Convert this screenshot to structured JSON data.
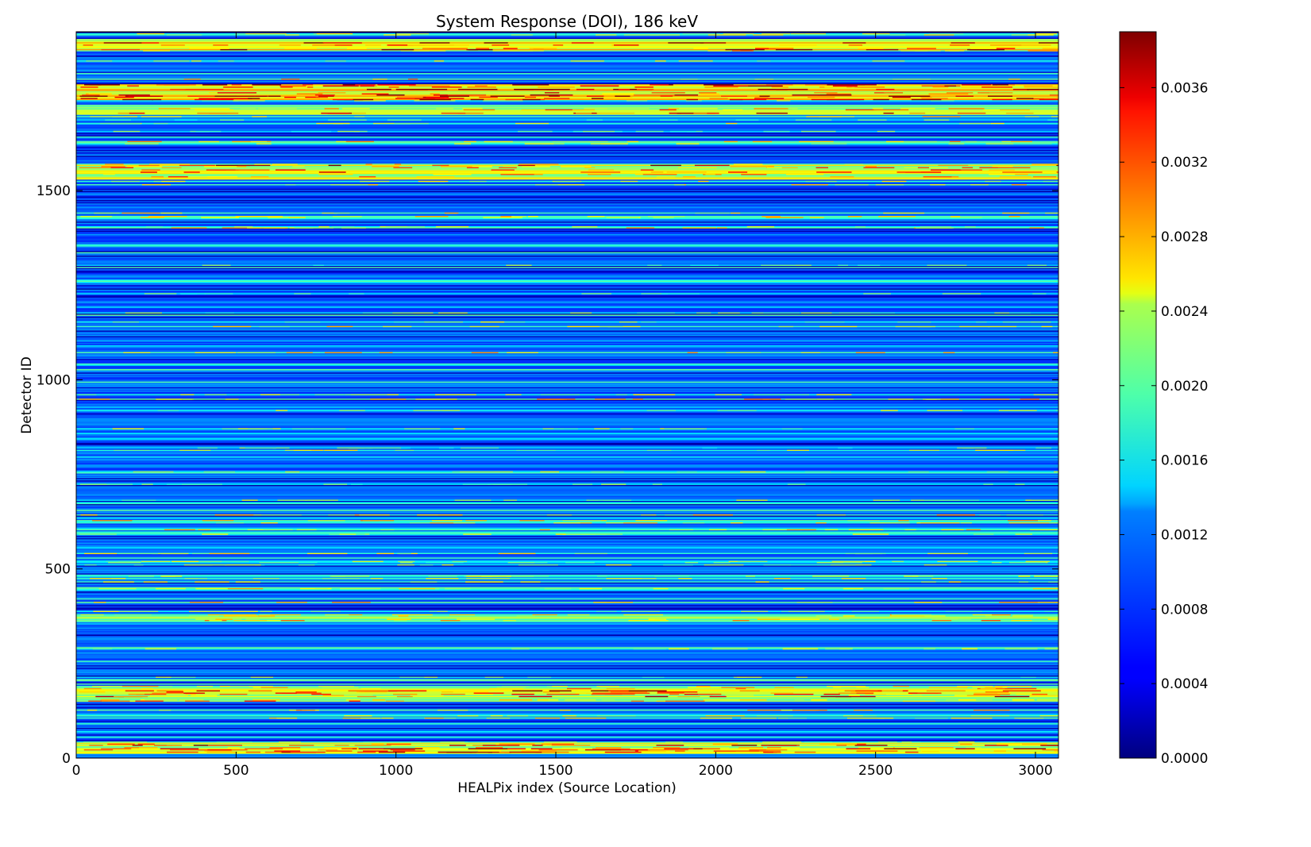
{
  "chart_data": {
    "type": "heatmap",
    "title": "System Response (DOI), 186 keV",
    "xlabel": "HEALPix index (Source Location)",
    "ylabel": "Detector ID",
    "xlim": [
      0,
      3072
    ],
    "ylim": [
      0,
      1920
    ],
    "x_ticks": [
      0,
      500,
      1000,
      1500,
      2000,
      2500,
      3000
    ],
    "y_ticks": [
      0,
      500,
      1000,
      1500
    ],
    "colormap": "jet",
    "colorbar": {
      "range": [
        0.0,
        0.0039
      ],
      "ticks": [
        "0.0000",
        "0.0004",
        "0.0008",
        "0.0012",
        "0.0016",
        "0.0020",
        "0.0024",
        "0.0028",
        "0.0032",
        "0.0036"
      ]
    },
    "bright_bands_detector_id": [
      {
        "id_range": [
          1870,
          1900
        ],
        "level": 0.0027
      },
      {
        "id_range": [
          1740,
          1780
        ],
        "level": 0.0026
      },
      {
        "id_range": [
          1530,
          1570
        ],
        "level": 0.0024
      },
      {
        "id_range": [
          1700,
          1725
        ],
        "level": 0.0022
      },
      {
        "id_range": [
          360,
          375
        ],
        "level": 0.0022
      },
      {
        "id_range": [
          150,
          190
        ],
        "level": 0.0023
      },
      {
        "id_range": [
          10,
          40
        ],
        "level": 0.0024
      }
    ],
    "typical_background": 0.0009
  }
}
